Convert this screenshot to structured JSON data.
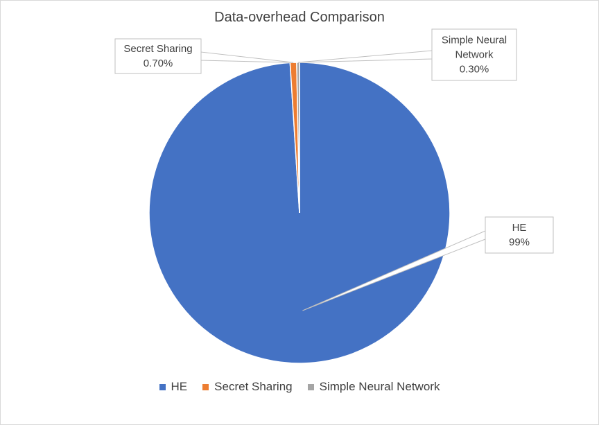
{
  "chart_data": {
    "type": "pie",
    "title": "Data-overhead Comparison",
    "categories": [
      "HE",
      "Secret Sharing",
      "Simple Neural Network"
    ],
    "values": [
      99,
      0.7,
      0.3
    ],
    "labels": [
      "99%",
      "0.70%",
      "0.30%"
    ],
    "colors": [
      "#4472c4",
      "#ed7d31",
      "#a5a5a5"
    ],
    "legend_position": "bottom",
    "data_label_style": "callout with category name and percentage"
  }
}
